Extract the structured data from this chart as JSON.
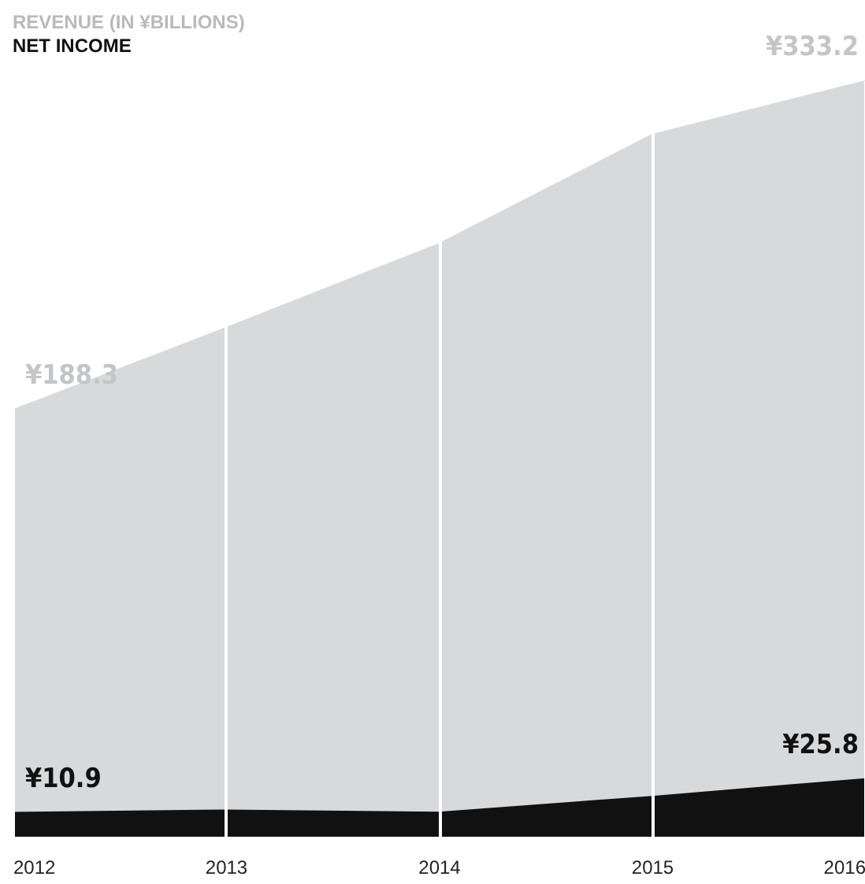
{
  "chart_data": {
    "type": "area",
    "x": [
      2012,
      2013,
      2014,
      2015,
      2016
    ],
    "xlim": [
      2012,
      2016
    ],
    "xticks": [
      2012,
      2013,
      2014,
      2015,
      2016
    ],
    "ylim": [
      0,
      333.2
    ],
    "grid": "x",
    "legend": "top left",
    "series": [
      {
        "name": "REVENUE (IN ¥BILLIONS)",
        "color": "#d8d9db",
        "values": [
          188.3,
          224.5,
          261.5,
          309.6,
          333.2
        ],
        "value_labels": [
          "¥188.3",
          null,
          null,
          null,
          "¥333.2"
        ]
      },
      {
        "name": "NET INCOME",
        "color": "#111111",
        "values": [
          10.9,
          12,
          11,
          18,
          25.8
        ],
        "value_labels": [
          "¥10.9",
          null,
          null,
          null,
          "¥25.8"
        ]
      }
    ]
  }
}
